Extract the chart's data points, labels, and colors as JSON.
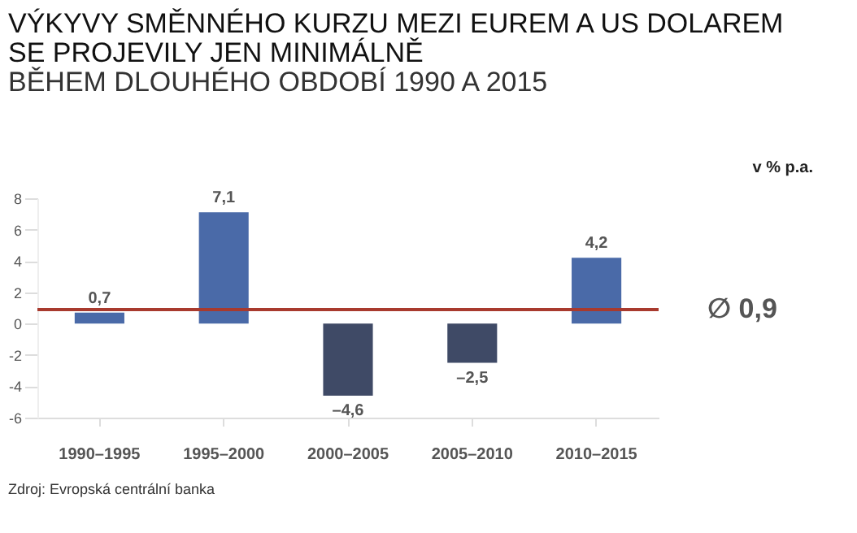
{
  "chart_data": {
    "type": "bar",
    "title": "VÝKYVY SMĚNNÉHO KURZU MEZI EUREM A US DOLAREM SE PROJEVILY JEN MINIMÁLNĚ",
    "subtitle": "BĚHEM DLOUHÉHO OBDOBÍ 1990 A 2015",
    "categories": [
      "1990–1995",
      "1995–2000",
      "2000–2005",
      "2005–2010",
      "2010–2015"
    ],
    "values": [
      0.7,
      7.1,
      -4.6,
      -2.5,
      4.2
    ],
    "colors": [
      "#4a6aa8",
      "#4a6aa8",
      "#3f4a66",
      "#3f4a66",
      "#4a6aa8"
    ],
    "value_labels": [
      "0,7",
      "7,1",
      "–4,6",
      "–2,5",
      "4,2"
    ],
    "ylim": [
      -6,
      8
    ],
    "yticks": [
      -6,
      -4,
      -2,
      0,
      2,
      4,
      6,
      8
    ],
    "ref_lines": [
      {
        "axis": "y",
        "value": 0.9,
        "label": "∅ 0,9",
        "color": "#a83a2e"
      }
    ],
    "grid": false,
    "annotations": [
      "v % p.a.",
      "Zdroj: Evropská centrální banka"
    ]
  }
}
